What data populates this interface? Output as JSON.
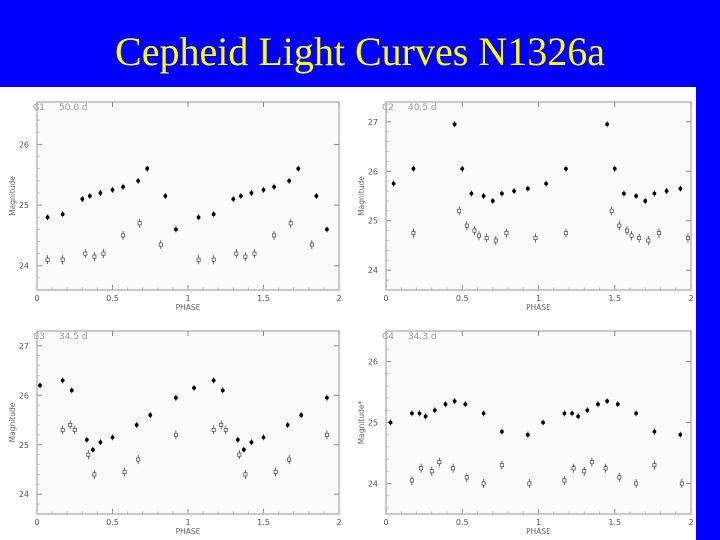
{
  "slide": {
    "title": "Cepheid Light Curves N1326a"
  },
  "chart_data": [
    {
      "type": "scatter",
      "label": "C1",
      "period": "50.0 d",
      "xlabel": "PHASE",
      "ylabel": "Magnitude",
      "xlim": [
        0,
        2
      ],
      "ylim": [
        26.7,
        23.6
      ],
      "xticks": [
        0,
        0.5,
        1,
        1.5,
        2
      ],
      "yticks": [
        24,
        25,
        26
      ],
      "series": [
        {
          "marker": "filled",
          "x": [
            0.07,
            0.17,
            0.3,
            0.35,
            0.42,
            0.5,
            0.57,
            0.67,
            0.73,
            0.85,
            0.92,
            1.07,
            1.17,
            1.3,
            1.35,
            1.42,
            1.5,
            1.57,
            1.67,
            1.73,
            1.85,
            1.92
          ],
          "y": [
            24.8,
            24.85,
            25.1,
            25.15,
            25.2,
            25.25,
            25.3,
            25.4,
            25.6,
            25.15,
            24.6,
            24.8,
            24.85,
            25.1,
            25.15,
            25.2,
            25.25,
            25.3,
            25.4,
            25.6,
            25.15,
            24.6
          ]
        },
        {
          "marker": "open",
          "x": [
            0.07,
            0.17,
            0.32,
            0.38,
            0.44,
            0.57,
            0.68,
            0.82,
            1.07,
            1.17,
            1.32,
            1.38,
            1.44,
            1.57,
            1.68,
            1.82
          ],
          "y": [
            24.1,
            24.1,
            24.2,
            24.15,
            24.2,
            24.5,
            24.7,
            24.35,
            24.1,
            24.1,
            24.2,
            24.15,
            24.2,
            24.5,
            24.7,
            24.35
          ]
        }
      ]
    },
    {
      "type": "scatter",
      "label": "C2",
      "period": "40.5 d",
      "xlabel": "PHASE",
      "ylabel": "Magnitude",
      "xlim": [
        0,
        2
      ],
      "ylim": [
        27.4,
        23.6
      ],
      "xticks": [
        0,
        0.5,
        1,
        1.5,
        2
      ],
      "yticks": [
        24,
        25,
        26,
        27
      ],
      "series": [
        {
          "marker": "filled",
          "x": [
            0.05,
            0.18,
            0.45,
            0.5,
            0.56,
            0.64,
            0.7,
            0.76,
            0.84,
            0.93,
            1.05,
            1.18,
            1.45,
            1.5,
            1.56,
            1.64,
            1.7,
            1.76,
            1.84,
            1.93
          ],
          "y": [
            25.75,
            26.05,
            26.95,
            26.05,
            25.55,
            25.5,
            25.4,
            25.55,
            25.6,
            25.65,
            25.75,
            26.05,
            26.95,
            26.05,
            25.55,
            25.5,
            25.4,
            25.55,
            25.6,
            25.65
          ]
        },
        {
          "marker": "open",
          "x": [
            0.18,
            0.48,
            0.53,
            0.58,
            0.61,
            0.66,
            0.72,
            0.79,
            0.98,
            1.18,
            1.48,
            1.53,
            1.58,
            1.61,
            1.66,
            1.72,
            1.79,
            1.98
          ],
          "y": [
            24.75,
            25.2,
            24.9,
            24.8,
            24.7,
            24.65,
            24.6,
            24.75,
            24.65,
            24.75,
            25.2,
            24.9,
            24.8,
            24.7,
            24.65,
            24.6,
            24.75,
            24.65
          ]
        }
      ]
    },
    {
      "type": "scatter",
      "label": "C3",
      "period": "34.5 d",
      "xlabel": "PHASE",
      "ylabel": "Magnitude",
      "xlim": [
        0,
        2
      ],
      "ylim": [
        27.3,
        23.6
      ],
      "xticks": [
        0,
        0.5,
        1,
        1.5,
        2
      ],
      "yticks": [
        24,
        25,
        26,
        27
      ],
      "series": [
        {
          "marker": "filled",
          "x": [
            0.02,
            0.17,
            0.23,
            0.33,
            0.37,
            0.42,
            0.5,
            0.66,
            0.75,
            0.92,
            1.04,
            1.17,
            1.23,
            1.33,
            1.37,
            1.42,
            1.5,
            1.66,
            1.75,
            1.92
          ],
          "y": [
            26.2,
            26.3,
            26.1,
            25.1,
            24.9,
            25.05,
            25.15,
            25.4,
            25.6,
            25.95,
            26.15,
            26.3,
            26.1,
            25.1,
            24.9,
            25.05,
            25.15,
            25.4,
            25.6,
            25.95
          ]
        },
        {
          "marker": "open",
          "x": [
            0.17,
            0.22,
            0.25,
            0.34,
            0.38,
            0.58,
            0.67,
            0.92,
            1.17,
            1.22,
            1.25,
            1.34,
            1.38,
            1.58,
            1.67,
            1.92
          ],
          "y": [
            25.3,
            25.4,
            25.3,
            24.8,
            24.4,
            24.45,
            24.7,
            25.2,
            25.3,
            25.4,
            25.3,
            24.8,
            24.4,
            24.45,
            24.7,
            25.2
          ]
        }
      ]
    },
    {
      "type": "scatter",
      "label": "C4",
      "period": "34.3 d",
      "xlabel": "PHASE",
      "ylabel": "Magnitude*",
      "xlim": [
        0,
        2
      ],
      "ylim": [
        26.5,
        23.5
      ],
      "xticks": [
        0,
        0.5,
        1,
        1.5,
        2
      ],
      "yticks": [
        24,
        25,
        26
      ],
      "series": [
        {
          "marker": "filled",
          "x": [
            0.03,
            0.17,
            0.22,
            0.26,
            0.32,
            0.39,
            0.45,
            0.52,
            0.64,
            0.76,
            0.93,
            1.03,
            1.17,
            1.22,
            1.26,
            1.32,
            1.39,
            1.45,
            1.52,
            1.64,
            1.76,
            1.93
          ],
          "y": [
            25.0,
            25.15,
            25.15,
            25.1,
            25.2,
            25.3,
            25.35,
            25.3,
            25.15,
            24.85,
            24.8,
            25.0,
            25.15,
            25.15,
            25.1,
            25.2,
            25.3,
            25.35,
            25.3,
            25.15,
            24.85,
            24.8
          ]
        },
        {
          "marker": "open",
          "x": [
            0.17,
            0.23,
            0.3,
            0.35,
            0.44,
            0.53,
            0.64,
            0.76,
            0.94,
            1.17,
            1.23,
            1.3,
            1.35,
            1.44,
            1.53,
            1.64,
            1.76,
            1.94
          ],
          "y": [
            24.05,
            24.25,
            24.2,
            24.35,
            24.25,
            24.1,
            24.0,
            24.3,
            24.0,
            24.05,
            24.25,
            24.2,
            24.35,
            24.25,
            24.1,
            24.0,
            24.3,
            24.0
          ]
        }
      ]
    }
  ]
}
